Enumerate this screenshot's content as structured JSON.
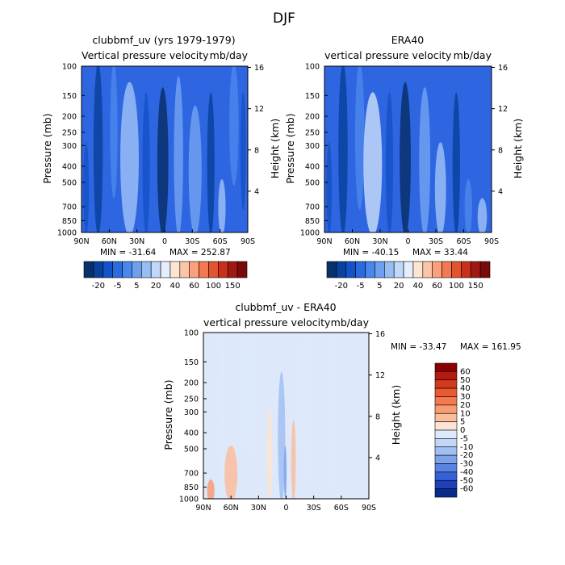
{
  "page_title": "DJF",
  "chart_data": [
    {
      "type": "heatmap",
      "panel": "model",
      "title": "clubbmf_uv (yrs 1979-1979)",
      "subtitle_left": "Vertical pressure velocity",
      "subtitle_right": "mb/day",
      "ylabel": "Pressure (mb)",
      "y2label": "Height (km)",
      "x_ticks": [
        "90N",
        "60N",
        "30N",
        "0",
        "30S",
        "60S",
        "90S"
      ],
      "y_ticks": [
        "100",
        "150",
        "200",
        "250",
        "300",
        "400",
        "500",
        "700",
        "850",
        "1000"
      ],
      "y2_ticks": [
        "16",
        "12",
        "8",
        "4"
      ],
      "min_label": "MIN = -31.64",
      "max_label": "MAX = 252.87",
      "colorbar_ticks": [
        "-20",
        "-5",
        "5",
        "20",
        "40",
        "60",
        "100",
        "150"
      ],
      "colorbar_colors": [
        "#08306b",
        "#08429e",
        "#1452c8",
        "#2b6be0",
        "#4a86ec",
        "#6ea0f0",
        "#98bdf4",
        "#c2d8f8",
        "#e4eefc",
        "#fde4d4",
        "#fcc6a6",
        "#fba07a",
        "#f27a52",
        "#e2532f",
        "#c9301c",
        "#a11812",
        "#7a0a0a"
      ],
      "pattern": {
        "background": "#2e66e2",
        "bands": [
          {
            "lat": 85,
            "width": 6,
            "level": -1,
            "ext": [
              300,
              1000
            ]
          },
          {
            "lat": 72,
            "width": 10,
            "level": -2,
            "ext": [
              100,
              1000
            ]
          },
          {
            "lat": 55,
            "width": 8,
            "level": 1,
            "ext": [
              100,
              600
            ]
          },
          {
            "lat": 38,
            "width": 20,
            "level": 3,
            "ext": [
              130,
              1000
            ]
          },
          {
            "lat": 20,
            "width": 8,
            "level": -1,
            "ext": [
              150,
              1000
            ]
          },
          {
            "lat": 2,
            "width": 12,
            "level": -4,
            "ext": [
              140,
              1000
            ]
          },
          {
            "lat": -15,
            "width": 10,
            "level": 2,
            "ext": [
              120,
              1000
            ]
          },
          {
            "lat": -33,
            "width": 14,
            "level": 2,
            "ext": [
              180,
              1000
            ]
          },
          {
            "lat": -50,
            "width": 8,
            "level": -2,
            "ext": [
              150,
              1000
            ]
          },
          {
            "lat": -62,
            "width": 8,
            "level": 3,
            "ext": [
              500,
              1000
            ]
          },
          {
            "lat": -75,
            "width": 10,
            "level": 1,
            "ext": [
              100,
              500
            ]
          },
          {
            "lat": -85,
            "width": 6,
            "level": -1,
            "ext": [
              150,
              700
            ]
          }
        ]
      }
    },
    {
      "type": "heatmap",
      "panel": "obs",
      "title": "ERA40",
      "subtitle_left": "vertical pressure velocity",
      "subtitle_right": "mb/day",
      "ylabel": "Pressure (mb)",
      "y2label": "Height (km)",
      "x_ticks": [
        "90N",
        "60N",
        "30N",
        "0",
        "30S",
        "60S",
        "90S"
      ],
      "y_ticks": [
        "100",
        "150",
        "200",
        "250",
        "300",
        "400",
        "500",
        "700",
        "850",
        "1000"
      ],
      "y2_ticks": [
        "16",
        "12",
        "8",
        "4"
      ],
      "min_label": "MIN = -40.15",
      "max_label": "MAX = 33.44",
      "colorbar_ticks": [
        "-20",
        "-5",
        "5",
        "20",
        "40",
        "60",
        "100",
        "150"
      ],
      "colorbar_colors": [
        "#08306b",
        "#08429e",
        "#1452c8",
        "#2b6be0",
        "#4a86ec",
        "#6ea0f0",
        "#98bdf4",
        "#c2d8f8",
        "#e4eefc",
        "#fde4d4",
        "#fcc6a6",
        "#fba07a",
        "#f27a52",
        "#e2532f",
        "#c9301c",
        "#a11812",
        "#7a0a0a"
      ],
      "pattern": {
        "background": "#2e66e2",
        "bands": [
          {
            "lat": 85,
            "width": 6,
            "level": -1,
            "ext": [
              300,
              1000
            ]
          },
          {
            "lat": 70,
            "width": 10,
            "level": -2,
            "ext": [
              100,
              1000
            ]
          },
          {
            "lat": 52,
            "width": 10,
            "level": 1,
            "ext": [
              100,
              700
            ]
          },
          {
            "lat": 38,
            "width": 20,
            "level": 4,
            "ext": [
              150,
              1000
            ]
          },
          {
            "lat": 20,
            "width": 8,
            "level": -1,
            "ext": [
              150,
              1000
            ]
          },
          {
            "lat": 3,
            "width": 12,
            "level": -4,
            "ext": [
              130,
              1000
            ]
          },
          {
            "lat": -18,
            "width": 12,
            "level": 2,
            "ext": [
              140,
              1000
            ]
          },
          {
            "lat": -35,
            "width": 12,
            "level": 3,
            "ext": [
              300,
              1000
            ]
          },
          {
            "lat": -52,
            "width": 8,
            "level": -2,
            "ext": [
              150,
              1000
            ]
          },
          {
            "lat": -65,
            "width": 8,
            "level": 1,
            "ext": [
              500,
              1000
            ]
          },
          {
            "lat": -80,
            "width": 10,
            "level": 3,
            "ext": [
              650,
              1000
            ]
          }
        ]
      }
    },
    {
      "type": "heatmap",
      "panel": "diff",
      "title": "clubbmf_uv - ERA40",
      "subtitle_left": "vertical pressure velocity",
      "subtitle_right": "mb/day",
      "ylabel": "Pressure (mb)",
      "y2label": "Height (km)",
      "x_ticks": [
        "90N",
        "60N",
        "30N",
        "0",
        "30S",
        "60S",
        "90S"
      ],
      "y_ticks": [
        "100",
        "150",
        "200",
        "250",
        "300",
        "400",
        "500",
        "700",
        "850",
        "1000"
      ],
      "y2_ticks": [
        "16",
        "12",
        "8",
        "4"
      ],
      "min_label": "MIN = -33.47",
      "max_label": "MAX = 161.95",
      "colorbar_ticks": [
        "60",
        "50",
        "40",
        "30",
        "20",
        "10",
        "5",
        "0",
        "-5",
        "-10",
        "-20",
        "-30",
        "-40",
        "-50",
        "-60"
      ],
      "colorbar_colors": [
        "#8b0000",
        "#b31b10",
        "#d23a1e",
        "#ea5a30",
        "#f47a4e",
        "#f89c74",
        "#fbbd9c",
        "#fde4d4",
        "#ddeafb",
        "#c2d6f6",
        "#a2bff2",
        "#7da2ec",
        "#5a84e4",
        "#3561d6",
        "#1e40b8",
        "#082a8a"
      ],
      "pattern": {
        "background": "#dde9fa",
        "bands": [
          {
            "lat": 70,
            "width": 6,
            "level": 0,
            "ext": [
              100,
              1000
            ]
          },
          {
            "lat": 40,
            "width": 10,
            "level": 0,
            "ext": [
              100,
              500
            ]
          },
          {
            "lat": 18,
            "width": 6,
            "level": -1,
            "ext": [
              300,
              1000
            ]
          },
          {
            "lat": 5,
            "width": 8,
            "level": 2,
            "ext": [
              180,
              1000
            ]
          },
          {
            "lat": 1,
            "width": 3,
            "level": 3,
            "ext": [
              500,
              950
            ]
          },
          {
            "lat": -8,
            "width": 5,
            "level": -2,
            "ext": [
              350,
              1000
            ]
          },
          {
            "lat": -22,
            "width": 8,
            "level": 0,
            "ext": [
              100,
              700
            ]
          },
          {
            "lat": -48,
            "width": 6,
            "level": 0,
            "ext": [
              100,
              800
            ]
          },
          {
            "lat": 60,
            "width": 14,
            "level": -2,
            "ext": [
              500,
              1000
            ]
          },
          {
            "lat": 82,
            "width": 8,
            "level": -3,
            "ext": [
              800,
              1000
            ]
          }
        ]
      }
    }
  ]
}
